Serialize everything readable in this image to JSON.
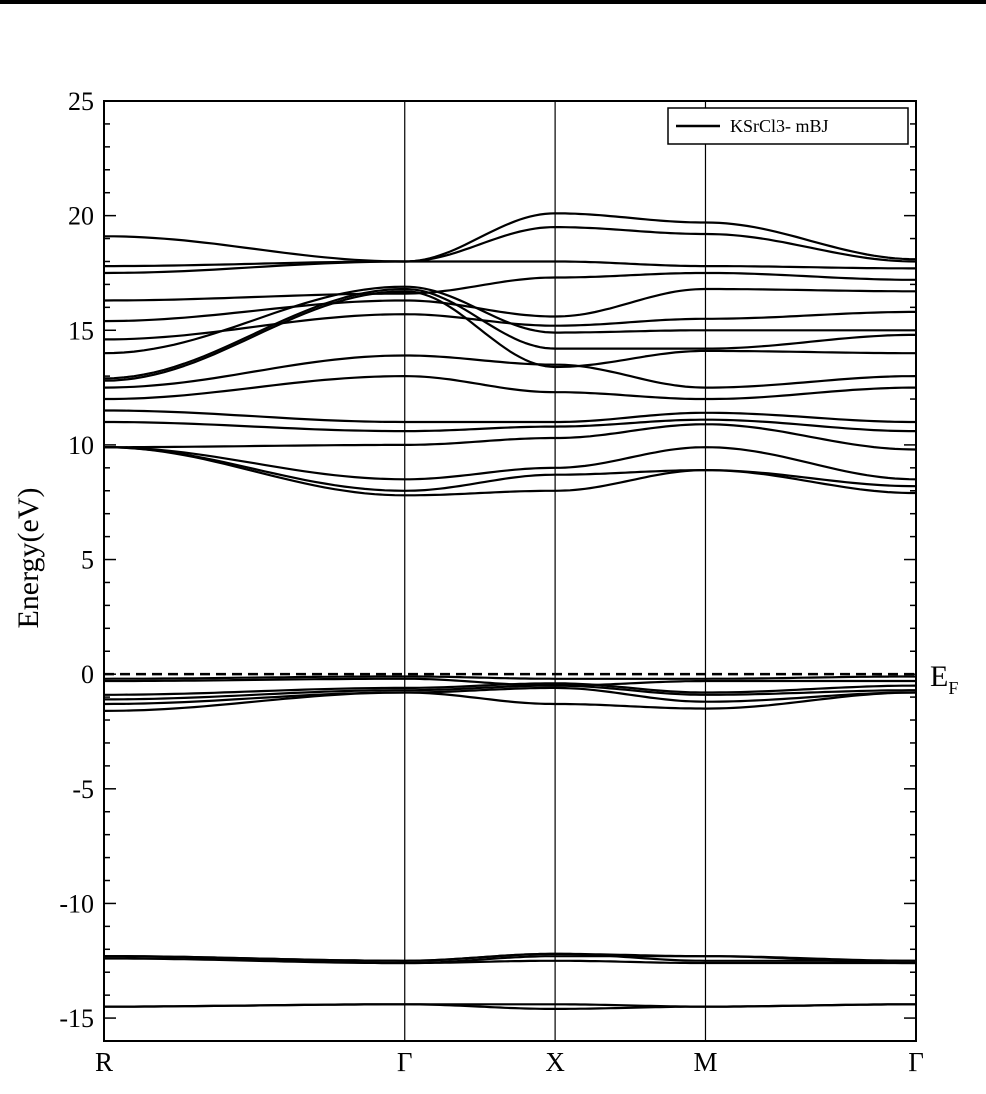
{
  "chart_data": {
    "type": "line",
    "title": "",
    "xlabel": "",
    "ylabel": "Energy(eV)",
    "ylim": [
      -16,
      25
    ],
    "yticks": [
      "25",
      "20",
      "15",
      "10",
      "5",
      "0",
      "-5",
      "-10",
      "-15"
    ],
    "ytick_values": [
      25,
      20,
      15,
      10,
      5,
      0,
      -5,
      -10,
      -15
    ],
    "kpoints": [
      "R",
      "Γ",
      "X",
      "M",
      "Γ"
    ],
    "kpoint_positions": [
      0,
      1,
      1.5,
      2,
      2.7
    ],
    "fermi_level": {
      "value": 0,
      "label": "E",
      "label_sub": "F",
      "style": "dashed"
    },
    "legend": {
      "label": "KSrCl3- mBJ",
      "position": "top-right"
    },
    "grid": false,
    "series": [
      {
        "values": [
          -14.5,
          -14.4,
          -14.4,
          -14.5,
          -14.4
        ]
      },
      {
        "values": [
          -14.5,
          -14.4,
          -14.6,
          -14.5,
          -14.4
        ]
      },
      {
        "values": [
          -12.3,
          -12.5,
          -12.2,
          -12.3,
          -12.5
        ]
      },
      {
        "values": [
          -12.3,
          -12.5,
          -12.2,
          -12.5,
          -12.5
        ]
      },
      {
        "values": [
          -12.4,
          -12.6,
          -12.3,
          -12.3,
          -12.6
        ]
      },
      {
        "values": [
          -12.3,
          -12.6,
          -12.5,
          -12.6,
          -12.6
        ]
      },
      {
        "values": [
          -1.6,
          -0.8,
          -1.3,
          -1.5,
          -0.8
        ]
      },
      {
        "values": [
          -1.3,
          -0.8,
          -0.6,
          -1.2,
          -0.8
        ]
      },
      {
        "values": [
          -1.1,
          -0.7,
          -0.5,
          -0.9,
          -0.7
        ]
      },
      {
        "values": [
          -0.9,
          -0.6,
          -0.4,
          -0.8,
          -0.5
        ]
      },
      {
        "values": [
          -0.3,
          -0.2,
          -0.5,
          -0.3,
          -0.3
        ]
      },
      {
        "values": [
          -0.2,
          -0.1,
          -0.2,
          -0.2,
          -0.1
        ]
      },
      {
        "values": [
          9.9,
          7.8,
          8.0,
          8.9,
          7.9
        ]
      },
      {
        "values": [
          9.9,
          8.0,
          8.7,
          8.9,
          8.2
        ]
      },
      {
        "values": [
          9.9,
          8.5,
          9.0,
          9.9,
          8.5
        ]
      },
      {
        "values": [
          9.9,
          10.0,
          10.3,
          10.9,
          9.8
        ]
      },
      {
        "values": [
          11.0,
          10.6,
          10.8,
          11.1,
          10.6
        ]
      },
      {
        "values": [
          11.5,
          11.0,
          11.0,
          11.4,
          11.0
        ]
      },
      {
        "values": [
          12.0,
          13.0,
          12.3,
          12.0,
          12.5
        ]
      },
      {
        "values": [
          12.5,
          13.9,
          13.5,
          12.5,
          13.0
        ]
      },
      {
        "values": [
          12.8,
          16.7,
          13.4,
          14.1,
          14.0
        ]
      },
      {
        "values": [
          12.9,
          16.8,
          14.2,
          14.2,
          14.8
        ]
      },
      {
        "values": [
          14.0,
          16.9,
          14.9,
          15.0,
          15.0
        ]
      },
      {
        "values": [
          14.6,
          15.7,
          15.2,
          15.5,
          15.8
        ]
      },
      {
        "values": [
          15.4,
          16.3,
          15.6,
          16.8,
          16.7
        ]
      },
      {
        "values": [
          16.3,
          16.6,
          17.3,
          17.5,
          17.2
        ]
      },
      {
        "values": [
          17.5,
          18.0,
          18.0,
          17.8,
          17.7
        ]
      },
      {
        "values": [
          17.8,
          18.0,
          19.5,
          19.2,
          18.0
        ]
      },
      {
        "values": [
          19.1,
          18.0,
          20.1,
          19.7,
          18.1
        ]
      }
    ]
  }
}
